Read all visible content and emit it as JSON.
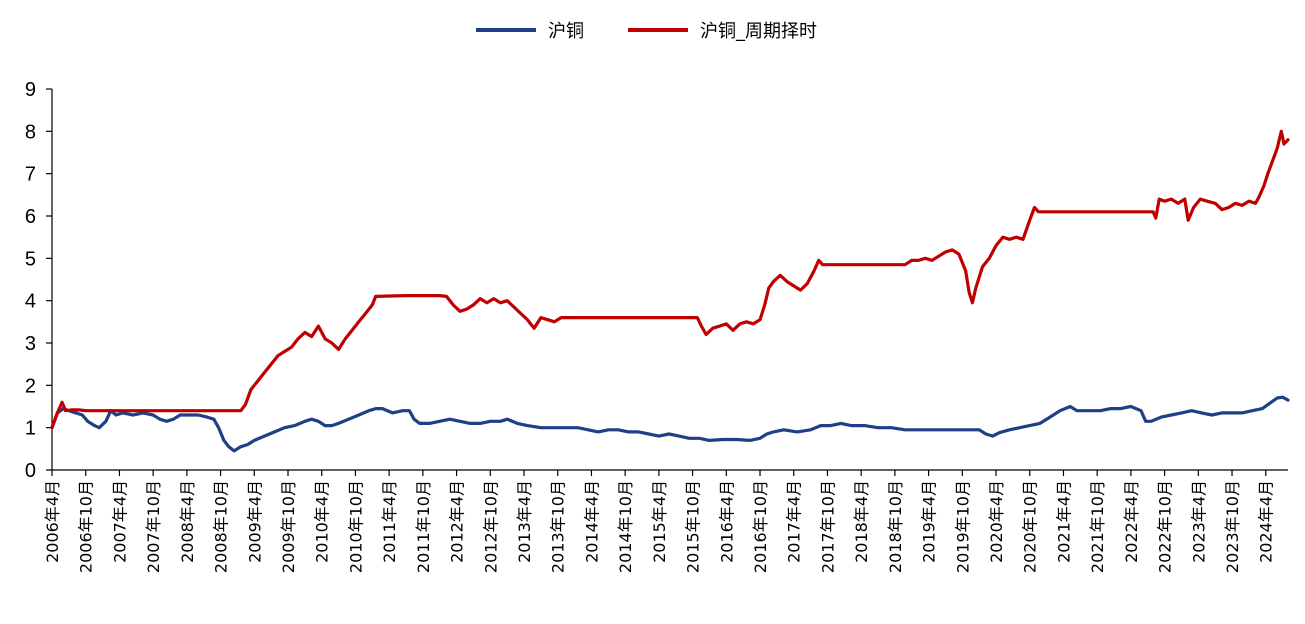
{
  "chart_data": {
    "type": "line",
    "title": "",
    "xlabel": "",
    "ylabel": "",
    "ylim": [
      0,
      9
    ],
    "yticks": [
      0,
      1,
      2,
      3,
      4,
      5,
      6,
      7,
      8,
      9
    ],
    "grid": false,
    "legend_position": "top-center",
    "x_start": 2006.25,
    "x_end": 2024.58,
    "x_ticks": [
      {
        "t": 2006.25,
        "label": "2006年4月"
      },
      {
        "t": 2006.75,
        "label": "2006年10月"
      },
      {
        "t": 2007.25,
        "label": "2007年4月"
      },
      {
        "t": 2007.75,
        "label": "2007年10月"
      },
      {
        "t": 2008.25,
        "label": "2008年4月"
      },
      {
        "t": 2008.75,
        "label": "2008年10月"
      },
      {
        "t": 2009.25,
        "label": "2009年4月"
      },
      {
        "t": 2009.75,
        "label": "2009年10月"
      },
      {
        "t": 2010.25,
        "label": "2010年4月"
      },
      {
        "t": 2010.75,
        "label": "2010年10月"
      },
      {
        "t": 2011.25,
        "label": "2011年4月"
      },
      {
        "t": 2011.75,
        "label": "2011年10月"
      },
      {
        "t": 2012.25,
        "label": "2012年4月"
      },
      {
        "t": 2012.75,
        "label": "2012年10月"
      },
      {
        "t": 2013.25,
        "label": "2013年4月"
      },
      {
        "t": 2013.75,
        "label": "2013年10月"
      },
      {
        "t": 2014.25,
        "label": "2014年4月"
      },
      {
        "t": 2014.75,
        "label": "2014年10月"
      },
      {
        "t": 2015.25,
        "label": "2015年4月"
      },
      {
        "t": 2015.75,
        "label": "2015年10月"
      },
      {
        "t": 2016.25,
        "label": "2016年4月"
      },
      {
        "t": 2016.75,
        "label": "2016年10月"
      },
      {
        "t": 2017.25,
        "label": "2017年4月"
      },
      {
        "t": 2017.75,
        "label": "2017年10月"
      },
      {
        "t": 2018.25,
        "label": "2018年4月"
      },
      {
        "t": 2018.75,
        "label": "2018年10月"
      },
      {
        "t": 2019.25,
        "label": "2019年4月"
      },
      {
        "t": 2019.75,
        "label": "2019年10月"
      },
      {
        "t": 2020.25,
        "label": "2020年4月"
      },
      {
        "t": 2020.75,
        "label": "2020年10月"
      },
      {
        "t": 2021.25,
        "label": "2021年4月"
      },
      {
        "t": 2021.75,
        "label": "2021年10月"
      },
      {
        "t": 2022.25,
        "label": "2022年4月"
      },
      {
        "t": 2022.75,
        "label": "2022年10月"
      },
      {
        "t": 2023.25,
        "label": "2023年4月"
      },
      {
        "t": 2023.75,
        "label": "2023年10月"
      },
      {
        "t": 2024.25,
        "label": "2024年4月"
      }
    ],
    "series": [
      {
        "name": "沪铜",
        "color": "#1f3f86",
        "points": [
          [
            2006.25,
            1.0
          ],
          [
            2006.33,
            1.35
          ],
          [
            2006.42,
            1.45
          ],
          [
            2006.5,
            1.4
          ],
          [
            2006.6,
            1.35
          ],
          [
            2006.7,
            1.3
          ],
          [
            2006.78,
            1.15
          ],
          [
            2006.88,
            1.05
          ],
          [
            2006.95,
            1.0
          ],
          [
            2007.05,
            1.15
          ],
          [
            2007.12,
            1.4
          ],
          [
            2007.2,
            1.3
          ],
          [
            2007.3,
            1.35
          ],
          [
            2007.45,
            1.3
          ],
          [
            2007.6,
            1.35
          ],
          [
            2007.75,
            1.3
          ],
          [
            2007.85,
            1.2
          ],
          [
            2007.95,
            1.15
          ],
          [
            2008.05,
            1.2
          ],
          [
            2008.15,
            1.3
          ],
          [
            2008.3,
            1.3
          ],
          [
            2008.42,
            1.3
          ],
          [
            2008.55,
            1.25
          ],
          [
            2008.65,
            1.2
          ],
          [
            2008.72,
            1.0
          ],
          [
            2008.8,
            0.7
          ],
          [
            2008.87,
            0.55
          ],
          [
            2008.95,
            0.45
          ],
          [
            2009.05,
            0.55
          ],
          [
            2009.15,
            0.6
          ],
          [
            2009.25,
            0.7
          ],
          [
            2009.4,
            0.8
          ],
          [
            2009.55,
            0.9
          ],
          [
            2009.7,
            1.0
          ],
          [
            2009.85,
            1.05
          ],
          [
            2010.0,
            1.15
          ],
          [
            2010.1,
            1.2
          ],
          [
            2010.2,
            1.15
          ],
          [
            2010.3,
            1.05
          ],
          [
            2010.4,
            1.05
          ],
          [
            2010.5,
            1.1
          ],
          [
            2010.65,
            1.2
          ],
          [
            2010.8,
            1.3
          ],
          [
            2010.95,
            1.4
          ],
          [
            2011.05,
            1.45
          ],
          [
            2011.15,
            1.45
          ],
          [
            2011.3,
            1.35
          ],
          [
            2011.45,
            1.4
          ],
          [
            2011.55,
            1.4
          ],
          [
            2011.62,
            1.2
          ],
          [
            2011.7,
            1.1
          ],
          [
            2011.85,
            1.1
          ],
          [
            2012.0,
            1.15
          ],
          [
            2012.15,
            1.2
          ],
          [
            2012.3,
            1.15
          ],
          [
            2012.45,
            1.1
          ],
          [
            2012.6,
            1.1
          ],
          [
            2012.75,
            1.15
          ],
          [
            2012.9,
            1.15
          ],
          [
            2013.0,
            1.2
          ],
          [
            2013.15,
            1.1
          ],
          [
            2013.3,
            1.05
          ],
          [
            2013.5,
            1.0
          ],
          [
            2013.7,
            1.0
          ],
          [
            2013.9,
            1.0
          ],
          [
            2014.05,
            1.0
          ],
          [
            2014.2,
            0.95
          ],
          [
            2014.35,
            0.9
          ],
          [
            2014.5,
            0.95
          ],
          [
            2014.65,
            0.95
          ],
          [
            2014.8,
            0.9
          ],
          [
            2014.95,
            0.9
          ],
          [
            2015.1,
            0.85
          ],
          [
            2015.25,
            0.8
          ],
          [
            2015.4,
            0.85
          ],
          [
            2015.55,
            0.8
          ],
          [
            2015.7,
            0.75
          ],
          [
            2015.85,
            0.75
          ],
          [
            2016.0,
            0.7
          ],
          [
            2016.2,
            0.72
          ],
          [
            2016.4,
            0.72
          ],
          [
            2016.6,
            0.7
          ],
          [
            2016.75,
            0.75
          ],
          [
            2016.85,
            0.85
          ],
          [
            2016.95,
            0.9
          ],
          [
            2017.1,
            0.95
          ],
          [
            2017.3,
            0.9
          ],
          [
            2017.5,
            0.95
          ],
          [
            2017.65,
            1.05
          ],
          [
            2017.8,
            1.05
          ],
          [
            2017.95,
            1.1
          ],
          [
            2018.1,
            1.05
          ],
          [
            2018.3,
            1.05
          ],
          [
            2018.5,
            1.0
          ],
          [
            2018.7,
            1.0
          ],
          [
            2018.9,
            0.95
          ],
          [
            2019.1,
            0.95
          ],
          [
            2019.3,
            0.95
          ],
          [
            2019.5,
            0.95
          ],
          [
            2019.7,
            0.95
          ],
          [
            2019.9,
            0.95
          ],
          [
            2020.0,
            0.95
          ],
          [
            2020.1,
            0.85
          ],
          [
            2020.2,
            0.8
          ],
          [
            2020.3,
            0.88
          ],
          [
            2020.45,
            0.95
          ],
          [
            2020.6,
            1.0
          ],
          [
            2020.75,
            1.05
          ],
          [
            2020.9,
            1.1
          ],
          [
            2021.05,
            1.25
          ],
          [
            2021.2,
            1.4
          ],
          [
            2021.35,
            1.5
          ],
          [
            2021.45,
            1.4
          ],
          [
            2021.6,
            1.4
          ],
          [
            2021.8,
            1.4
          ],
          [
            2021.95,
            1.45
          ],
          [
            2022.1,
            1.45
          ],
          [
            2022.25,
            1.5
          ],
          [
            2022.4,
            1.4
          ],
          [
            2022.47,
            1.15
          ],
          [
            2022.55,
            1.15
          ],
          [
            2022.7,
            1.25
          ],
          [
            2022.85,
            1.3
          ],
          [
            2023.0,
            1.35
          ],
          [
            2023.15,
            1.4
          ],
          [
            2023.3,
            1.35
          ],
          [
            2023.45,
            1.3
          ],
          [
            2023.6,
            1.35
          ],
          [
            2023.75,
            1.35
          ],
          [
            2023.9,
            1.35
          ],
          [
            2024.05,
            1.4
          ],
          [
            2024.2,
            1.45
          ],
          [
            2024.33,
            1.6
          ],
          [
            2024.42,
            1.7
          ],
          [
            2024.5,
            1.72
          ],
          [
            2024.58,
            1.65
          ]
        ]
      },
      {
        "name": "沪铜_周期择时",
        "color": "#c00000",
        "points": [
          [
            2006.25,
            1.0
          ],
          [
            2006.33,
            1.35
          ],
          [
            2006.4,
            1.6
          ],
          [
            2006.45,
            1.4
          ],
          [
            2006.55,
            1.42
          ],
          [
            2006.65,
            1.42
          ],
          [
            2006.75,
            1.4
          ],
          [
            2007.5,
            1.4
          ],
          [
            2008.5,
            1.4
          ],
          [
            2009.05,
            1.4
          ],
          [
            2009.12,
            1.55
          ],
          [
            2009.2,
            1.9
          ],
          [
            2009.3,
            2.1
          ],
          [
            2009.4,
            2.3
          ],
          [
            2009.5,
            2.5
          ],
          [
            2009.6,
            2.7
          ],
          [
            2009.7,
            2.8
          ],
          [
            2009.8,
            2.9
          ],
          [
            2009.9,
            3.1
          ],
          [
            2010.0,
            3.25
          ],
          [
            2010.1,
            3.15
          ],
          [
            2010.2,
            3.4
          ],
          [
            2010.3,
            3.1
          ],
          [
            2010.4,
            3.0
          ],
          [
            2010.5,
            2.85
          ],
          [
            2010.6,
            3.1
          ],
          [
            2010.7,
            3.3
          ],
          [
            2010.8,
            3.5
          ],
          [
            2010.9,
            3.7
          ],
          [
            2011.0,
            3.9
          ],
          [
            2011.05,
            4.1
          ],
          [
            2011.5,
            4.12
          ],
          [
            2012.0,
            4.12
          ],
          [
            2012.1,
            4.1
          ],
          [
            2012.2,
            3.9
          ],
          [
            2012.3,
            3.75
          ],
          [
            2012.4,
            3.8
          ],
          [
            2012.5,
            3.9
          ],
          [
            2012.6,
            4.05
          ],
          [
            2012.7,
            3.95
          ],
          [
            2012.8,
            4.05
          ],
          [
            2012.9,
            3.95
          ],
          [
            2013.0,
            4.0
          ],
          [
            2013.1,
            3.85
          ],
          [
            2013.2,
            3.7
          ],
          [
            2013.3,
            3.55
          ],
          [
            2013.4,
            3.35
          ],
          [
            2013.5,
            3.6
          ],
          [
            2013.6,
            3.55
          ],
          [
            2013.7,
            3.5
          ],
          [
            2013.8,
            3.6
          ],
          [
            2014.5,
            3.6
          ],
          [
            2015.0,
            3.6
          ],
          [
            2015.5,
            3.6
          ],
          [
            2015.82,
            3.6
          ],
          [
            2015.88,
            3.4
          ],
          [
            2015.95,
            3.2
          ],
          [
            2016.05,
            3.35
          ],
          [
            2016.15,
            3.4
          ],
          [
            2016.25,
            3.45
          ],
          [
            2016.35,
            3.3
          ],
          [
            2016.45,
            3.45
          ],
          [
            2016.55,
            3.5
          ],
          [
            2016.65,
            3.45
          ],
          [
            2016.75,
            3.55
          ],
          [
            2016.82,
            3.9
          ],
          [
            2016.88,
            4.3
          ],
          [
            2016.95,
            4.45
          ],
          [
            2017.05,
            4.6
          ],
          [
            2017.15,
            4.45
          ],
          [
            2017.25,
            4.35
          ],
          [
            2017.35,
            4.25
          ],
          [
            2017.45,
            4.4
          ],
          [
            2017.55,
            4.7
          ],
          [
            2017.62,
            4.95
          ],
          [
            2017.68,
            4.85
          ],
          [
            2018.0,
            4.85
          ],
          [
            2018.5,
            4.85
          ],
          [
            2018.9,
            4.85
          ],
          [
            2019.0,
            4.95
          ],
          [
            2019.1,
            4.95
          ],
          [
            2019.2,
            5.0
          ],
          [
            2019.3,
            4.95
          ],
          [
            2019.4,
            5.05
          ],
          [
            2019.5,
            5.15
          ],
          [
            2019.6,
            5.2
          ],
          [
            2019.7,
            5.1
          ],
          [
            2019.8,
            4.7
          ],
          [
            2019.85,
            4.2
          ],
          [
            2019.9,
            3.95
          ],
          [
            2019.95,
            4.3
          ],
          [
            2020.05,
            4.8
          ],
          [
            2020.15,
            5.0
          ],
          [
            2020.25,
            5.3
          ],
          [
            2020.35,
            5.5
          ],
          [
            2020.45,
            5.45
          ],
          [
            2020.55,
            5.5
          ],
          [
            2020.65,
            5.45
          ],
          [
            2020.75,
            5.9
          ],
          [
            2020.82,
            6.2
          ],
          [
            2020.88,
            6.1
          ],
          [
            2021.5,
            6.1
          ],
          [
            2022.0,
            6.1
          ],
          [
            2022.58,
            6.1
          ],
          [
            2022.62,
            5.95
          ],
          [
            2022.67,
            6.4
          ],
          [
            2022.75,
            6.35
          ],
          [
            2022.85,
            6.4
          ],
          [
            2022.95,
            6.3
          ],
          [
            2023.05,
            6.4
          ],
          [
            2023.1,
            5.9
          ],
          [
            2023.18,
            6.2
          ],
          [
            2023.28,
            6.4
          ],
          [
            2023.38,
            6.35
          ],
          [
            2023.5,
            6.3
          ],
          [
            2023.6,
            6.15
          ],
          [
            2023.7,
            6.2
          ],
          [
            2023.8,
            6.3
          ],
          [
            2023.9,
            6.25
          ],
          [
            2024.0,
            6.35
          ],
          [
            2024.1,
            6.3
          ],
          [
            2024.15,
            6.45
          ],
          [
            2024.22,
            6.7
          ],
          [
            2024.28,
            7.0
          ],
          [
            2024.35,
            7.3
          ],
          [
            2024.42,
            7.6
          ],
          [
            2024.48,
            8.0
          ],
          [
            2024.52,
            7.7
          ],
          [
            2024.58,
            7.8
          ]
        ]
      }
    ]
  }
}
